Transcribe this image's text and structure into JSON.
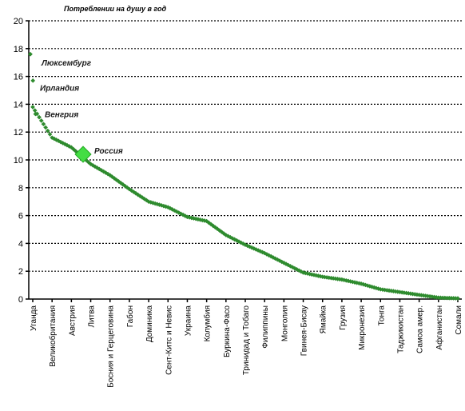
{
  "chart_data": {
    "type": "scatter",
    "title": "Потреблении на душу в год",
    "ylim": [
      0,
      20
    ],
    "yticks": [
      "0",
      "2",
      "4",
      "6",
      "8",
      "10",
      "12",
      "14",
      "16",
      "18",
      "20"
    ],
    "grid": true,
    "series_color": "#2e8b2e",
    "highlight_color": "#44dd44",
    "categories": [
      "Уганда",
      "Великобритания",
      "Австрия",
      "Литва",
      "Босния и Герцеговина",
      "Габон",
      "Доминика",
      "Сент-Китс и Невис",
      "Украина",
      "Колумбия",
      "Буркина-Фасо",
      "Тринидад и Тобаго",
      "Филиппины",
      "Монголия",
      "Гвинея-Бисау",
      "Ямайка",
      "Грузия",
      "Микронезия",
      "Тонга",
      "Таджикистан",
      "Самоа амер.",
      "Афганистан",
      "Сомали"
    ],
    "y_at_categories": [
      13.8,
      11.6,
      10.9,
      9.7,
      8.9,
      7.9,
      7.0,
      6.6,
      5.9,
      5.6,
      4.6,
      3.9,
      3.3,
      2.6,
      1.9,
      1.6,
      1.4,
      1.1,
      0.7,
      0.5,
      0.3,
      0.1,
      0.05
    ],
    "highlight": {
      "label": "Россия",
      "value": 10.4
    },
    "annotations": [
      {
        "label": "Люксембург",
        "value": 17.6
      },
      {
        "label": "Ирландия",
        "value": 15.7
      },
      {
        "label": "Венгрия",
        "value": 13.3
      }
    ]
  }
}
